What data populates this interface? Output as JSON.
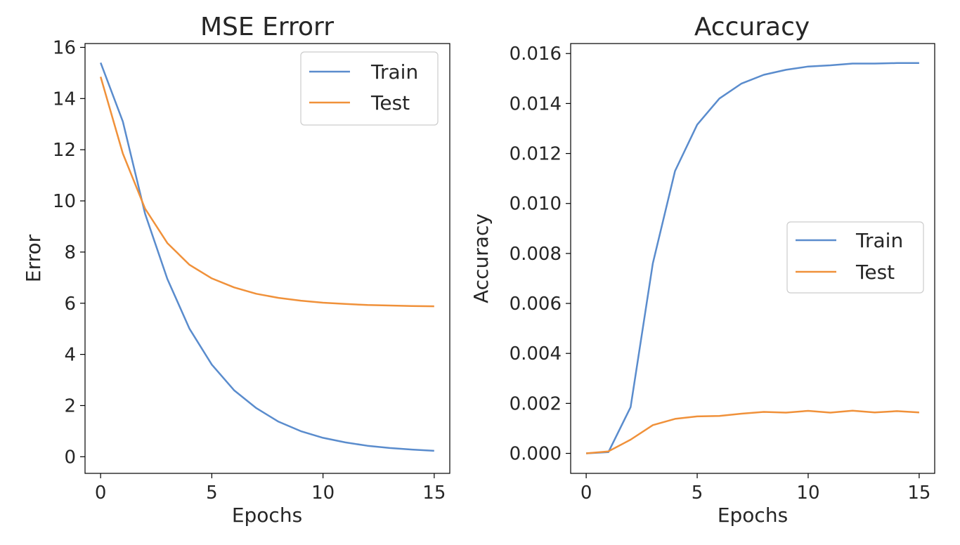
{
  "chart_data": [
    {
      "type": "line",
      "title": "MSE Errorr",
      "xlabel": "Epochs",
      "ylabel": "Error",
      "xlim": [
        -0.7,
        15.7
      ],
      "ylim": [
        -0.65,
        16.15
      ],
      "xticks": [
        0,
        5,
        10,
        15
      ],
      "yticks": [
        0,
        2,
        4,
        6,
        8,
        10,
        12,
        14,
        16
      ],
      "ytick_decimals": 0,
      "grid": false,
      "legend_position": "top-right",
      "x": [
        0,
        1,
        2,
        3,
        4,
        5,
        6,
        7,
        8,
        9,
        10,
        11,
        12,
        13,
        14,
        15
      ],
      "series": [
        {
          "name": "Train",
          "color": "#5a8ccd",
          "values": [
            15.4,
            13.1,
            9.5,
            6.95,
            5.0,
            3.6,
            2.6,
            1.9,
            1.37,
            1.0,
            0.74,
            0.56,
            0.43,
            0.34,
            0.28,
            0.23
          ]
        },
        {
          "name": "Test",
          "color": "#f0913a",
          "values": [
            14.85,
            11.85,
            9.7,
            8.35,
            7.5,
            6.97,
            6.62,
            6.37,
            6.21,
            6.1,
            6.02,
            5.97,
            5.93,
            5.91,
            5.89,
            5.88
          ]
        }
      ]
    },
    {
      "type": "line",
      "title": "Accuracy",
      "xlabel": "Epochs",
      "ylabel": "Accuracy",
      "xlim": [
        -0.7,
        15.7
      ],
      "ylim": [
        -0.0008,
        0.0164
      ],
      "xticks": [
        0,
        5,
        10,
        15
      ],
      "yticks": [
        0.0,
        0.002,
        0.004,
        0.006,
        0.008,
        0.01,
        0.012,
        0.014,
        0.016
      ],
      "ytick_decimals": 3,
      "grid": false,
      "legend_position": "center-right",
      "x": [
        0,
        1,
        2,
        3,
        4,
        5,
        6,
        7,
        8,
        9,
        10,
        11,
        12,
        13,
        14,
        15
      ],
      "series": [
        {
          "name": "Train",
          "color": "#5a8ccd",
          "values": [
            0.0,
            5e-05,
            0.00185,
            0.0076,
            0.0113,
            0.01315,
            0.0142,
            0.0148,
            0.01515,
            0.01535,
            0.01548,
            0.01553,
            0.0156,
            0.0156,
            0.01562,
            0.01562
          ]
        },
        {
          "name": "Test",
          "color": "#f0913a",
          "values": [
            0.0,
            8e-05,
            0.00055,
            0.00113,
            0.00138,
            0.00148,
            0.0015,
            0.00159,
            0.00166,
            0.00163,
            0.0017,
            0.00163,
            0.00171,
            0.00164,
            0.00169,
            0.00164
          ]
        }
      ]
    }
  ]
}
